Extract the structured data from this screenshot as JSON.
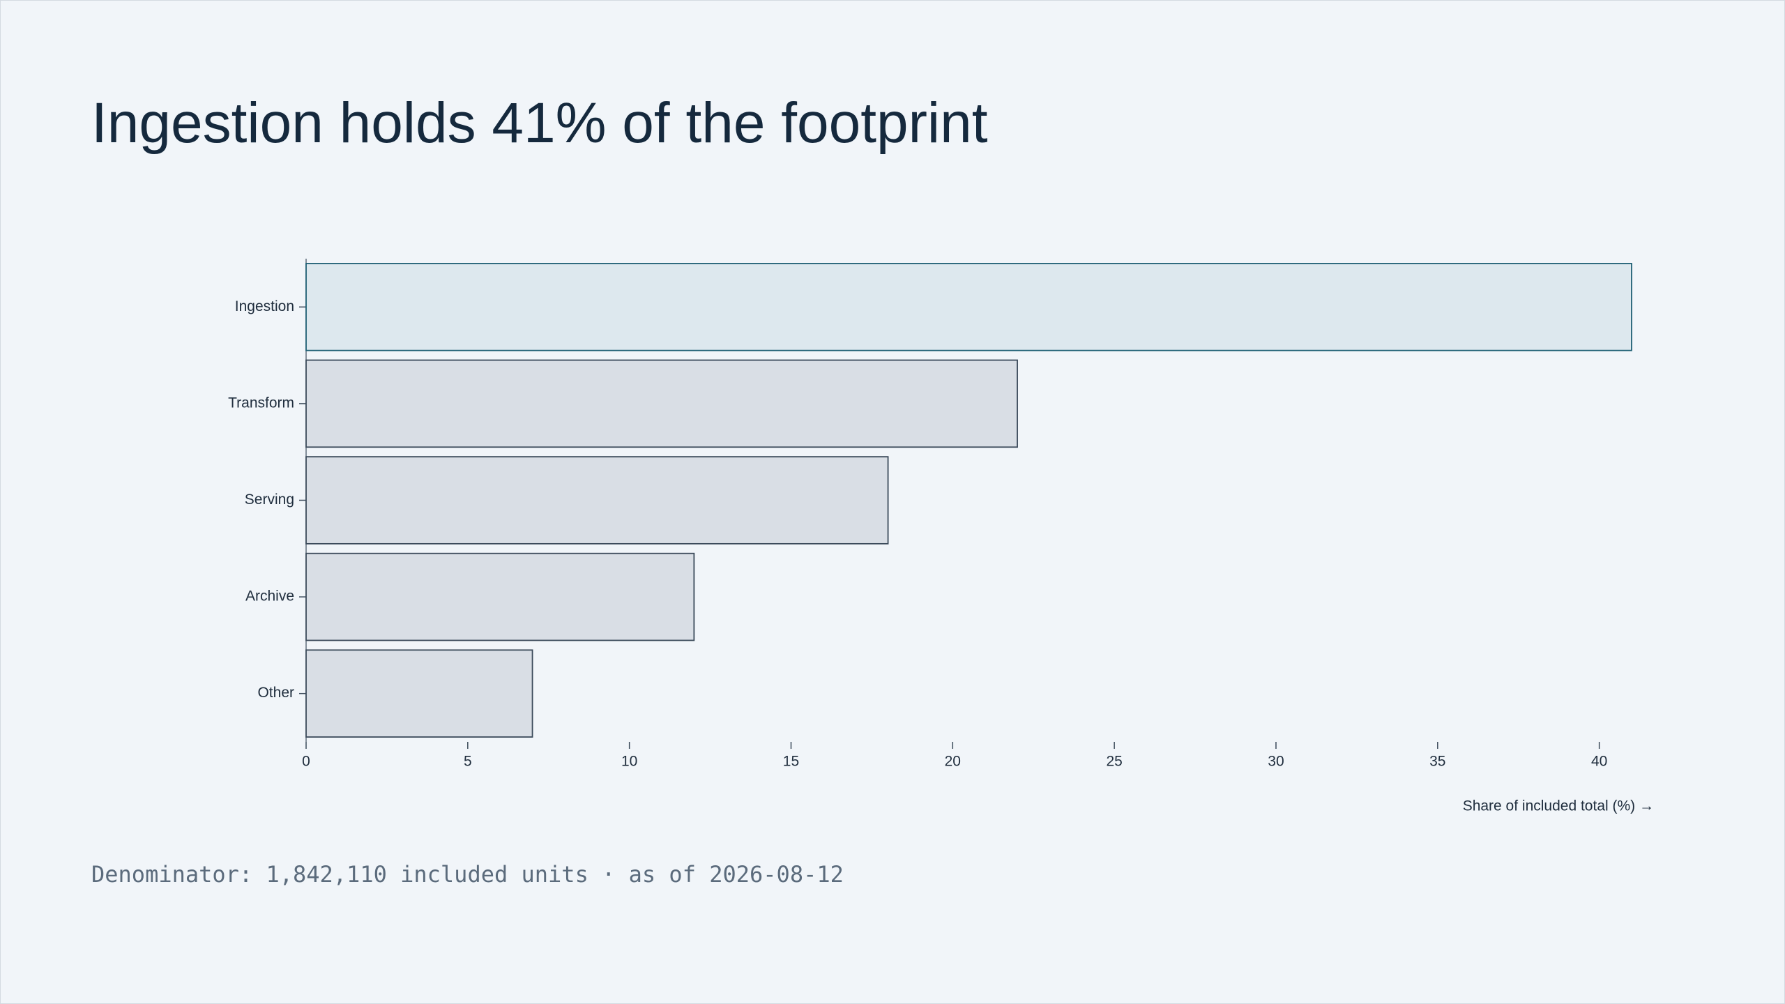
{
  "chart_data": {
    "type": "bar",
    "orientation": "horizontal",
    "title": "Ingestion holds 41% of the footprint",
    "categories": [
      "Ingestion",
      "Transform",
      "Serving",
      "Archive",
      "Other"
    ],
    "values": [
      41,
      22,
      18,
      12,
      7
    ],
    "colors": [
      "#dde8ee",
      "#d9dee5",
      "#d9dee5",
      "#d9dee5",
      "#d9dee5"
    ],
    "edge_colors": [
      "#1e5f74",
      "#3b4a5a",
      "#3b4a5a",
      "#3b4a5a",
      "#3b4a5a"
    ],
    "xlim": [
      0,
      41
    ],
    "xticks": [
      0,
      5,
      10,
      15,
      20,
      25,
      30,
      35,
      40
    ],
    "xlabel": "Share of included total (%) →",
    "footnote": "Denominator: 1,842,110 included units · as of 2026-08-12",
    "grid": false
  }
}
